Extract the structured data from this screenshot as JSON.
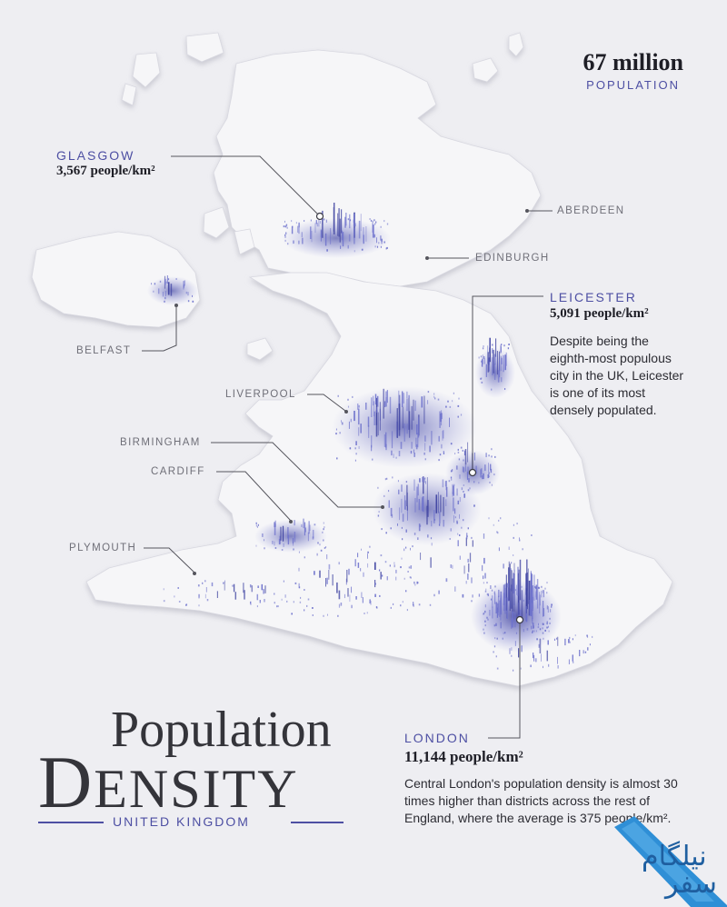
{
  "headline": {
    "population_value": "67 million",
    "population_label": "POPULATION"
  },
  "title": {
    "line1": "Population",
    "line2_initial": "D",
    "line2_rest": "ENSITY",
    "country": "UNITED KINGDOM"
  },
  "cities": {
    "glasgow": {
      "name": "GLASGOW",
      "stat": "3,567 people/km²"
    },
    "leicester": {
      "name": "LEICESTER",
      "stat": "5,091 people/km²",
      "description": "Despite being the eighth-most populous city in the UK, Leicester is one of its most densely populated."
    },
    "london": {
      "name": "LONDON",
      "stat": "11,144 people/km²",
      "description": "Central London's population density is almost 30 times higher than districts across the rest of England, where the average is 375 people/km²."
    },
    "aberdeen": "ABERDEEN",
    "edinburgh": "EDINBURGH",
    "belfast": "BELFAST",
    "liverpool": "LIVERPOOL",
    "birmingham": "BIRMINGHAM",
    "cardiff": "CARDIFF",
    "plymouth": "PLYMOUTH"
  },
  "watermark": {
    "line1": "نیلگام",
    "line2": "سفر"
  },
  "colors": {
    "accent": "#4d4fa3",
    "land": "#f6f6f8",
    "spike": "#5a5fc0",
    "background": "#eeeef2"
  }
}
